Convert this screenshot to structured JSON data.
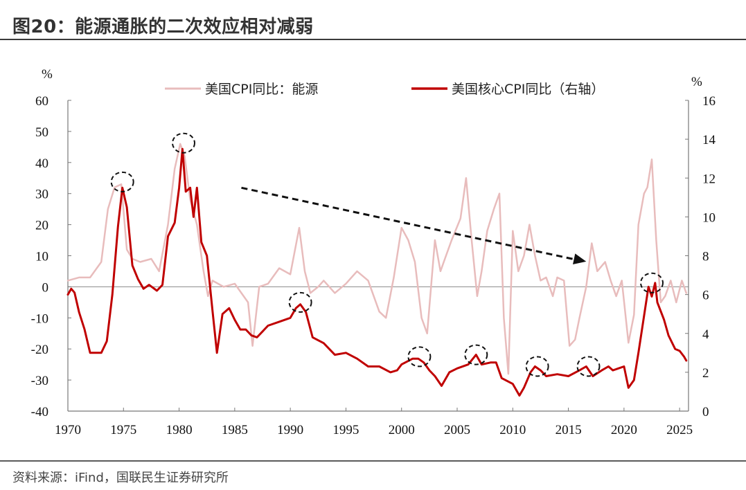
{
  "header": {
    "title": "图20：能源通胀的二次效应相对减弱"
  },
  "footer": {
    "source": "资料来源：iFind，国联民生证券研究所"
  },
  "chart_data": {
    "type": "line",
    "title": "图20：能源通胀的二次效应相对减弱",
    "left_axis": {
      "unit": "%",
      "ylim": [
        -40,
        60
      ],
      "ticks": [
        60,
        50,
        40,
        30,
        20,
        10,
        0,
        -10,
        -20,
        -30,
        -40
      ]
    },
    "right_axis": {
      "unit": "%",
      "ylim": [
        0,
        16
      ],
      "ticks": [
        16,
        14,
        12,
        10,
        8,
        6,
        4,
        2,
        0
      ]
    },
    "x_axis": {
      "range": [
        1970,
        2025.8
      ],
      "ticks": [
        1970,
        1975,
        1980,
        1985,
        1990,
        1995,
        2000,
        2005,
        2010,
        2015,
        2020,
        2025
      ]
    },
    "series": [
      {
        "name": "美国CPI同比：能源",
        "axis": "left",
        "color": "#e8bcbc",
        "points": [
          [
            1970,
            2
          ],
          [
            1971,
            3
          ],
          [
            1972,
            3
          ],
          [
            1973,
            8
          ],
          [
            1973.6,
            25
          ],
          [
            1974.2,
            32
          ],
          [
            1974.8,
            33
          ],
          [
            1975.3,
            12
          ],
          [
            1975.8,
            9
          ],
          [
            1976.5,
            8
          ],
          [
            1977.5,
            9
          ],
          [
            1978.2,
            5
          ],
          [
            1979,
            20
          ],
          [
            1979.6,
            38
          ],
          [
            1980.1,
            46
          ],
          [
            1980.5,
            42
          ],
          [
            1981,
            28
          ],
          [
            1981.6,
            20
          ],
          [
            1982.2,
            5
          ],
          [
            1982.6,
            -3
          ],
          [
            1983,
            2
          ],
          [
            1984,
            0
          ],
          [
            1985,
            1
          ],
          [
            1986.2,
            -5
          ],
          [
            1986.6,
            -19
          ],
          [
            1987.2,
            0
          ],
          [
            1988,
            1
          ],
          [
            1989,
            6
          ],
          [
            1990,
            4
          ],
          [
            1990.8,
            19
          ],
          [
            1991.3,
            5
          ],
          [
            1991.8,
            -2
          ],
          [
            1992.5,
            0
          ],
          [
            1993,
            2
          ],
          [
            1994,
            -2
          ],
          [
            1995,
            1
          ],
          [
            1996,
            5
          ],
          [
            1997,
            2
          ],
          [
            1998,
            -8
          ],
          [
            1998.6,
            -10
          ],
          [
            1999.3,
            3
          ],
          [
            2000,
            19
          ],
          [
            2000.6,
            15
          ],
          [
            2001.2,
            8
          ],
          [
            2001.8,
            -10
          ],
          [
            2002.3,
            -15
          ],
          [
            2003,
            15
          ],
          [
            2003.5,
            5
          ],
          [
            2004,
            10
          ],
          [
            2004.5,
            15
          ],
          [
            2005.3,
            22
          ],
          [
            2005.8,
            35
          ],
          [
            2006.3,
            15
          ],
          [
            2006.8,
            -3
          ],
          [
            2007.2,
            5
          ],
          [
            2007.7,
            18
          ],
          [
            2008.3,
            25
          ],
          [
            2008.8,
            30
          ],
          [
            2009.2,
            -10
          ],
          [
            2009.6,
            -28
          ],
          [
            2010,
            18
          ],
          [
            2010.5,
            5
          ],
          [
            2011,
            10
          ],
          [
            2011.5,
            20
          ],
          [
            2012,
            10
          ],
          [
            2012.5,
            2
          ],
          [
            2013,
            3
          ],
          [
            2013.6,
            -3
          ],
          [
            2014,
            3
          ],
          [
            2014.6,
            2
          ],
          [
            2015.1,
            -19
          ],
          [
            2015.6,
            -17
          ],
          [
            2016,
            -10
          ],
          [
            2016.6,
            0
          ],
          [
            2017.1,
            14
          ],
          [
            2017.6,
            5
          ],
          [
            2018.3,
            8
          ],
          [
            2018.8,
            2
          ],
          [
            2019.3,
            -3
          ],
          [
            2019.8,
            2
          ],
          [
            2020.4,
            -18
          ],
          [
            2020.9,
            -9
          ],
          [
            2021.3,
            20
          ],
          [
            2021.8,
            30
          ],
          [
            2022.1,
            32
          ],
          [
            2022.5,
            41
          ],
          [
            2022.9,
            15
          ],
          [
            2023.3,
            -5
          ],
          [
            2023.7,
            -3
          ],
          [
            2024.2,
            2
          ],
          [
            2024.7,
            -5
          ],
          [
            2025.2,
            2
          ],
          [
            2025.6,
            -2
          ]
        ]
      },
      {
        "name": "美国核心CPI同比（右轴）",
        "axis": "right",
        "color": "#c00000",
        "points": [
          [
            1970,
            6
          ],
          [
            1970.3,
            6.3
          ],
          [
            1970.6,
            6.1
          ],
          [
            1971,
            5.1
          ],
          [
            1971.5,
            4.2
          ],
          [
            1972,
            3
          ],
          [
            1972.5,
            3
          ],
          [
            1973,
            3
          ],
          [
            1973.5,
            3.6
          ],
          [
            1974,
            6
          ],
          [
            1974.5,
            9.5
          ],
          [
            1974.9,
            11.5
          ],
          [
            1975.3,
            10.5
          ],
          [
            1975.8,
            7.5
          ],
          [
            1976.3,
            6.8
          ],
          [
            1976.8,
            6.3
          ],
          [
            1977.3,
            6.5
          ],
          [
            1978,
            6.2
          ],
          [
            1978.5,
            6.5
          ],
          [
            1979,
            9
          ],
          [
            1979.6,
            9.7
          ],
          [
            1980,
            11.5
          ],
          [
            1980.3,
            13.5
          ],
          [
            1980.6,
            11.3
          ],
          [
            1981,
            11.5
          ],
          [
            1981.3,
            10
          ],
          [
            1981.6,
            11.5
          ],
          [
            1982,
            8.7
          ],
          [
            1982.5,
            8
          ],
          [
            1983,
            5.2
          ],
          [
            1983.4,
            3
          ],
          [
            1983.9,
            5
          ],
          [
            1984.5,
            5.3
          ],
          [
            1985,
            4.7
          ],
          [
            1985.5,
            4.2
          ],
          [
            1986,
            4.2
          ],
          [
            1986.5,
            3.9
          ],
          [
            1987,
            3.8
          ],
          [
            1988,
            4.4
          ],
          [
            1989,
            4.6
          ],
          [
            1990,
            4.8
          ],
          [
            1990.5,
            5.3
          ],
          [
            1990.9,
            5.5
          ],
          [
            1991.4,
            5.1
          ],
          [
            1992,
            3.8
          ],
          [
            1993,
            3.5
          ],
          [
            1994,
            2.9
          ],
          [
            1995,
            3
          ],
          [
            1996,
            2.7
          ],
          [
            1997,
            2.3
          ],
          [
            1998,
            2.3
          ],
          [
            1999,
            2
          ],
          [
            1999.6,
            2.1
          ],
          [
            2000,
            2.4
          ],
          [
            2001,
            2.7
          ],
          [
            2001.5,
            2.7
          ],
          [
            2002,
            2.5
          ],
          [
            2002.5,
            2.1
          ],
          [
            2003,
            1.8
          ],
          [
            2003.6,
            1.3
          ],
          [
            2004.3,
            2
          ],
          [
            2005,
            2.2
          ],
          [
            2006,
            2.4
          ],
          [
            2006.7,
            2.9
          ],
          [
            2007.2,
            2.4
          ],
          [
            2008,
            2.5
          ],
          [
            2008.5,
            2.5
          ],
          [
            2009,
            1.7
          ],
          [
            2010,
            1.4
          ],
          [
            2010.6,
            0.8
          ],
          [
            2011,
            1.2
          ],
          [
            2011.6,
            2
          ],
          [
            2012,
            2.3
          ],
          [
            2012.5,
            2.1
          ],
          [
            2013,
            1.8
          ],
          [
            2014,
            1.9
          ],
          [
            2015,
            1.8
          ],
          [
            2016,
            2.1
          ],
          [
            2016.6,
            2.3
          ],
          [
            2017.2,
            1.8
          ],
          [
            2018,
            2.1
          ],
          [
            2018.6,
            2.3
          ],
          [
            2019,
            2.1
          ],
          [
            2020,
            2.3
          ],
          [
            2020.4,
            1.2
          ],
          [
            2020.9,
            1.6
          ],
          [
            2021.3,
            3
          ],
          [
            2021.8,
            4.9
          ],
          [
            2022.2,
            6.4
          ],
          [
            2022.5,
            5.9
          ],
          [
            2022.8,
            6.6
          ],
          [
            2023,
            5.6
          ],
          [
            2023.6,
            4.7
          ],
          [
            2024,
            3.9
          ],
          [
            2024.6,
            3.2
          ],
          [
            2025,
            3.1
          ],
          [
            2025.4,
            2.8
          ],
          [
            2025.6,
            2.6
          ]
        ]
      }
    ],
    "annotations": {
      "circles": [
        {
          "label": "1975 peak",
          "x": 1974.9,
          "y_right": 11.8
        },
        {
          "label": "1980 peak",
          "x": 1980.4,
          "y_right": 13.8
        },
        {
          "label": "1991 peak",
          "x": 1990.9,
          "y_right": 5.6
        },
        {
          "label": "2001 peak",
          "x": 2001.6,
          "y_right": 2.8
        },
        {
          "label": "2006 peak",
          "x": 2006.7,
          "y_right": 2.9
        },
        {
          "label": "2012 peak",
          "x": 2012.2,
          "y_right": 2.3
        },
        {
          "label": "2016 peak",
          "x": 2016.8,
          "y_right": 2.3
        },
        {
          "label": "2022 peak",
          "x": 2022.5,
          "y_right": 6.6
        }
      ],
      "arrow": {
        "from": {
          "x": 1985.6,
          "y_right": 11.5
        },
        "to": {
          "x": 2016.6,
          "y_right": 7.7
        },
        "style": "dashed"
      }
    }
  }
}
